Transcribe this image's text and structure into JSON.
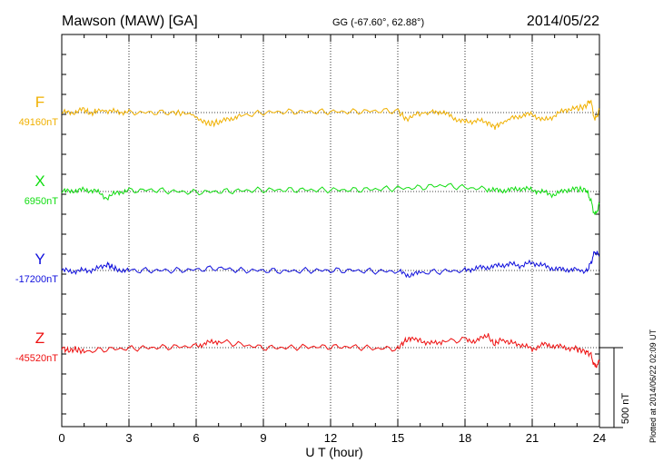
{
  "header": {
    "station": "Mawson (MAW)  [GA]",
    "coords": "GG (-67.60°,  62.88°)",
    "date": "2014/05/22"
  },
  "footer": {
    "plotted": "Plotted at 2014/06/22 02:09 UT",
    "scale_label": "500 nT"
  },
  "colors": {
    "F": "#f0b000",
    "X": "#10dd10",
    "Y": "#1010dd",
    "Z": "#ee1010",
    "grid": "#000000"
  },
  "chart_data": {
    "type": "line",
    "title": "Mawson (MAW)  [GA]",
    "xlabel": "U T (hour)",
    "xlim": [
      0,
      24
    ],
    "xticks": [
      0,
      3,
      6,
      9,
      12,
      15,
      18,
      21,
      24
    ],
    "scale_bar_nT": 500,
    "grid": true,
    "series": [
      {
        "name": "F",
        "baseline_label": "49160nT",
        "baseline": 49160,
        "x": [
          0,
          0.5,
          1,
          1.3,
          1.6,
          2,
          2.5,
          3,
          4,
          5,
          5.8,
          6.2,
          6.6,
          7,
          7.5,
          8,
          9,
          10,
          11,
          12,
          13,
          14,
          15,
          15.4,
          15.8,
          16.5,
          17,
          17.5,
          18,
          18.5,
          19,
          19.3,
          19.6,
          20,
          20.5,
          21,
          21.5,
          22,
          22.5,
          23,
          23.4,
          23.6,
          23.8,
          24
        ],
        "values": [
          49160,
          49160,
          49180,
          49150,
          49175,
          49170,
          49165,
          49160,
          49160,
          49160,
          49150,
          49110,
          49090,
          49100,
          49120,
          49140,
          49160,
          49165,
          49165,
          49165,
          49165,
          49170,
          49170,
          49115,
          49150,
          49160,
          49165,
          49125,
          49100,
          49110,
          49100,
          49070,
          49090,
          49120,
          49140,
          49150,
          49110,
          49140,
          49180,
          49185,
          49200,
          49240,
          49110,
          49180
        ]
      },
      {
        "name": "X",
        "baseline_label": "6950nT",
        "baseline": 6950,
        "x": [
          0,
          0.5,
          1,
          1.5,
          2,
          2.5,
          3,
          4,
          5,
          6,
          7,
          8,
          9,
          10,
          11,
          12,
          13,
          14,
          15,
          16,
          17,
          18,
          19,
          19.5,
          20,
          20.5,
          21,
          21.5,
          22,
          22.5,
          23,
          23.4,
          23.6,
          23.8,
          24
        ],
        "values": [
          6950,
          6955,
          6960,
          6955,
          6910,
          6945,
          6955,
          6960,
          6950,
          6945,
          6950,
          6955,
          6960,
          6960,
          6960,
          6960,
          6960,
          6965,
          6970,
          6975,
          6990,
          6975,
          6965,
          6955,
          6960,
          6970,
          6960,
          6945,
          6930,
          6960,
          6965,
          6960,
          6900,
          6800,
          6870
        ]
      },
      {
        "name": "Y",
        "baseline_label": "-17200nT",
        "baseline": -17200,
        "x": [
          0,
          0.5,
          1,
          1.5,
          2,
          2.2,
          2.5,
          3,
          4,
          5,
          6,
          7,
          8,
          9,
          10,
          11,
          12,
          13,
          14,
          15,
          15.5,
          16,
          17,
          18,
          18.5,
          19,
          19.5,
          20,
          20.5,
          21,
          21.5,
          22,
          22.5,
          23,
          23.4,
          23.6,
          23.8,
          24
        ],
        "values": [
          -17200,
          -17205,
          -17200,
          -17195,
          -17160,
          -17175,
          -17195,
          -17200,
          -17200,
          -17200,
          -17195,
          -17185,
          -17200,
          -17200,
          -17205,
          -17200,
          -17200,
          -17200,
          -17205,
          -17205,
          -17230,
          -17215,
          -17205,
          -17200,
          -17185,
          -17180,
          -17170,
          -17160,
          -17170,
          -17150,
          -17170,
          -17190,
          -17195,
          -17195,
          -17210,
          -17160,
          -17080,
          -17110
        ]
      },
      {
        "name": "Z",
        "baseline_label": "-45520nT",
        "baseline": -45520,
        "x": [
          0,
          0.3,
          0.6,
          1,
          2,
          3,
          4,
          5,
          6,
          6.5,
          7,
          8,
          9,
          10,
          11,
          12,
          13,
          14,
          15,
          15.3,
          15.6,
          16,
          16.5,
          17,
          18,
          18.5,
          19,
          19.3,
          19.6,
          20,
          20.5,
          21,
          21.5,
          22,
          22.5,
          23,
          23.3,
          23.6,
          23.8,
          24
        ],
        "values": [
          -45520,
          -45540,
          -45530,
          -45545,
          -45530,
          -45525,
          -45520,
          -45515,
          -45510,
          -45490,
          -45480,
          -45500,
          -45520,
          -45520,
          -45515,
          -45515,
          -45515,
          -45525,
          -45525,
          -45480,
          -45460,
          -45475,
          -45495,
          -45480,
          -45470,
          -45480,
          -45440,
          -45500,
          -45470,
          -45490,
          -45500,
          -45530,
          -45500,
          -45510,
          -45520,
          -45530,
          -45540,
          -45560,
          -45640,
          -45610
        ]
      }
    ]
  }
}
